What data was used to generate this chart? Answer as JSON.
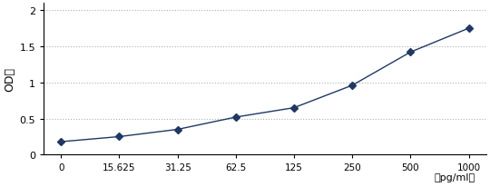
{
  "x_positions": [
    0,
    1,
    2,
    3,
    4,
    5,
    6,
    7
  ],
  "x_tick_labels": [
    "0",
    "15.625",
    "31.25",
    "62.5",
    "125",
    "250",
    "500",
    "1000"
  ],
  "y": [
    0.18,
    0.25,
    0.35,
    0.52,
    0.65,
    0.96,
    1.42,
    1.75
  ],
  "ylabel": "OD值",
  "xlabel_unit": "（pg/ml）",
  "ylim": [
    0,
    2.1
  ],
  "yticks": [
    0,
    0.5,
    1.0,
    1.5,
    2
  ],
  "ytick_labels": [
    "0",
    "0.5",
    "1",
    "1.5",
    "2"
  ],
  "xlim": [
    -0.3,
    7.3
  ],
  "line_color": "#1F3864",
  "marker": "D",
  "marker_size": 4,
  "background_color": "#ffffff",
  "grid": true,
  "grid_color": "#b0b0b0",
  "grid_style": ":"
}
